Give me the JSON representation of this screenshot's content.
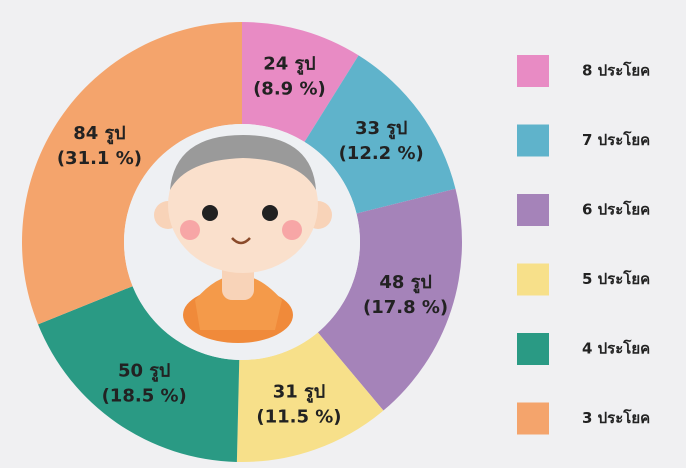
{
  "chart_data": {
    "type": "donut",
    "categories": [
      "8 ประโยค",
      "7 ประโยค",
      "6 ประโยค",
      "5 ประโยค",
      "4 ประโยค",
      "3 ประโยค"
    ],
    "values": [
      24,
      33,
      48,
      31,
      50,
      84
    ],
    "value_labels": [
      "24 รูป",
      "33 รูป",
      "48 รูป",
      "31 รูป",
      "50 รูป",
      "84 รูป"
    ],
    "percent_labels": [
      "(8.9 %)",
      "(12.2 %)",
      "(17.8 %)",
      "(11.5 %)",
      "(18.5 %)",
      "(31.1 %)"
    ],
    "colors": [
      "#e88bc4",
      "#5fb3cb",
      "#a583b9",
      "#f7e08a",
      "#2a9a84",
      "#f4a46c"
    ],
    "legend": "right"
  }
}
